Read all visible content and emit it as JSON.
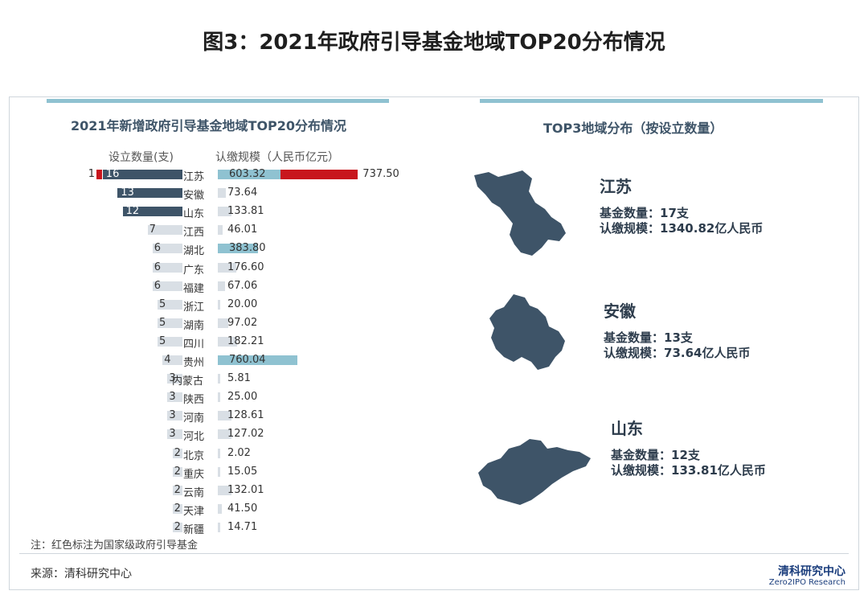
{
  "title": "图3：2021年政府引导基金地域TOP20分布情况",
  "left_panel": {
    "title": "2021年新增政府引导基金地域TOP20分布情况",
    "count_header": "设立数量(支)",
    "amount_header": "认缴规模（人民币亿元）"
  },
  "right_panel": {
    "title": "TOP3地域分布（按设立数量）",
    "provinces": [
      {
        "name": "江苏",
        "fund_count_line": "基金数量：17支",
        "amount_line": "认缴规模：1340.82亿人民币"
      },
      {
        "name": "安徽",
        "fund_count_line": "基金数量：13支",
        "amount_line": "认缴规模：73.64亿人民币"
      },
      {
        "name": "山东",
        "fund_count_line": "基金数量：12支",
        "amount_line": "认缴规模：133.81亿人民币"
      }
    ]
  },
  "note": "注：红色标注为国家级政府引导基金",
  "source": "来源：清科研究中心",
  "logo": {
    "cn": "清科研究中心",
    "en": "Zero2IPO Research"
  },
  "colors": {
    "dark_bar": "#3e5468",
    "light_bar": "#d9dfe5",
    "teal_bar": "#8fc2d1",
    "national_red": "#c8161d"
  },
  "chart_data": {
    "type": "bar",
    "categories": [
      "江苏",
      "安徽",
      "山东",
      "江西",
      "湖北",
      "广东",
      "福建",
      "浙江",
      "湖南",
      "四川",
      "贵州",
      "内蒙古",
      "陕西",
      "河南",
      "河北",
      "北京",
      "重庆",
      "云南",
      "天津",
      "新疆"
    ],
    "series": [
      {
        "name": "设立数量(支)",
        "values": [
          16,
          13,
          12,
          7,
          6,
          6,
          6,
          5,
          5,
          5,
          4,
          3,
          3,
          3,
          3,
          2,
          2,
          2,
          2,
          2
        ]
      },
      {
        "name": "认缴规模（人民币亿元）",
        "values": [
          603.32,
          73.64,
          133.81,
          46.01,
          383.8,
          176.6,
          67.06,
          20.0,
          97.02,
          182.21,
          760.04,
          5.81,
          25.0,
          128.61,
          127.02,
          2.02,
          15.05,
          132.01,
          41.5,
          14.71
        ]
      }
    ],
    "national": {
      "category": "江苏",
      "count": 1,
      "amount": 737.5
    },
    "count_labels": [
      "16",
      "13",
      "12",
      "7",
      "6",
      "6",
      "6",
      "5",
      "5",
      "5",
      "4",
      "3",
      "3",
      "3",
      "3",
      "2",
      "2",
      "2",
      "2",
      "2"
    ],
    "amount_labels": [
      "603.32",
      "73.64",
      "133.81",
      "46.01",
      "383.80",
      "176.60",
      "67.06",
      "20.00",
      "97.02",
      "182.21",
      "760.04",
      "5.81",
      "25.00",
      "128.61",
      "127.02",
      "2.02",
      "15.05",
      "132.01",
      "41.50",
      "14.71"
    ],
    "national_count_label": "1",
    "national_amount_label": "737.50"
  }
}
